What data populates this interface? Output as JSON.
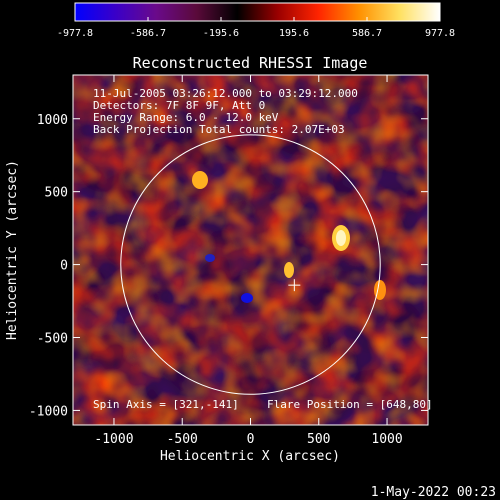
{
  "colorbar": {
    "tick_labels": [
      "-977.8",
      "-586.7",
      "-195.6",
      "195.6",
      "586.7",
      "977.8"
    ],
    "range": [
      -977.8,
      977.8
    ],
    "colormap": [
      "#0000ff",
      "#3a00c8",
      "#6a0a8a",
      "#5a0a3a",
      "#000000",
      "#9a0000",
      "#ff2400",
      "#ff9000",
      "#ffe060",
      "#ffffff"
    ]
  },
  "title": "Reconstructed RHESSI Image",
  "annotations": {
    "line1": "11-Jul-2005 03:26:12.000 to 03:29:12.000",
    "line2": "Detectors: 7F 8F 9F, Att 0",
    "line3": "Energy Range: 6.0 - 12.0 keV",
    "line4": "Back Projection     Total counts: 2.07E+03",
    "spin_axis": "Spin Axis = [321,-141]",
    "flare_position": "Flare Position = [648,80]"
  },
  "axes": {
    "xlabel": "Heliocentric X (arcsec)",
    "ylabel": "Heliocentric Y (arcsec)",
    "x_range": [
      -1300,
      1300
    ],
    "y_range": [
      -1100,
      1300
    ],
    "x_ticks": [
      "-1000",
      "-500",
      "0",
      "500",
      "1000"
    ],
    "y_ticks": [
      "1000",
      "500",
      "0",
      "-500",
      "-1000"
    ]
  },
  "solar_disk": {
    "center_x": 0,
    "center_y": 0,
    "radius_arcsec": 950
  },
  "marker": {
    "symbol": "plus",
    "x": 321,
    "y": -141
  },
  "timestamp": "1-May-2022 00:23"
}
